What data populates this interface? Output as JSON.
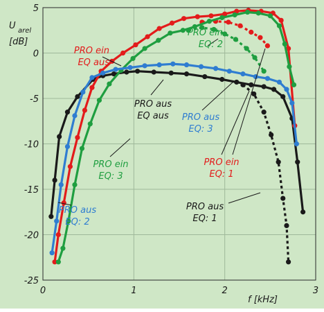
{
  "chart_data": {
    "type": "line",
    "background": "#cfe7c6",
    "title": "",
    "xlabel": "f [kHz]",
    "ylabel": "U",
    "ylabel_sub": "arel",
    "ylabel_unit": "[dB]",
    "xlim": [
      0,
      3
    ],
    "ylim": [
      -25,
      5
    ],
    "xticks": [
      0,
      1,
      2,
      3
    ],
    "xtick_labels": [
      "0",
      "1",
      "2",
      "3"
    ],
    "yticks": [
      5,
      0,
      -5,
      -10,
      -15,
      -20,
      -25
    ],
    "ytick_labels": [
      "5",
      "0",
      "-5",
      "-10",
      "-15",
      "-20",
      "-25"
    ],
    "grid": true,
    "series": [
      {
        "key": "black",
        "color": "#1a1a1a",
        "labels": [
          "PRO aus EQ: 1",
          "PRO aus EQ aus"
        ],
        "x": [
          0.09,
          0.13,
          0.18,
          0.27,
          0.38,
          0.55,
          0.66,
          0.78,
          0.92,
          1.04,
          1.22,
          1.41,
          1.58,
          1.78,
          1.97,
          2.13,
          2.29,
          2.43,
          2.54,
          2.64,
          2.74,
          2.8,
          2.86
        ],
        "y": [
          -18,
          -14,
          -9.2,
          -6.5,
          -4.8,
          -2.9,
          -2.5,
          -2.3,
          -2.1,
          -2.0,
          -2.1,
          -2.2,
          -2.3,
          -2.6,
          -2.9,
          -3.2,
          -3.5,
          -3.7,
          -4.0,
          -4.8,
          -7.2,
          -12,
          -17.5
        ],
        "dotted": {
          "x": [
            2.2,
            2.32,
            2.43,
            2.51,
            2.59,
            2.64,
            2.68,
            2.7
          ],
          "y": [
            -3.5,
            -4.5,
            -6.5,
            -9.0,
            -12,
            -16,
            -19,
            -23
          ]
        }
      },
      {
        "key": "red",
        "color": "#e31b1b",
        "labels": [
          "PRO ein EQ aus",
          "PRO ein EQ: 1"
        ],
        "x": [
          0.13,
          0.17,
          0.23,
          0.3,
          0.38,
          0.46,
          0.54,
          0.64,
          0.76,
          0.88,
          1.02,
          1.15,
          1.28,
          1.42,
          1.55,
          1.7,
          1.85,
          2.0,
          2.13,
          2.26,
          2.4,
          2.53,
          2.62,
          2.7,
          2.77
        ],
        "y": [
          -23,
          -20,
          -16.5,
          -12.5,
          -9.3,
          -6.3,
          -3.8,
          -2.0,
          -0.9,
          0.0,
          0.9,
          1.8,
          2.7,
          3.3,
          3.8,
          4.0,
          4.1,
          4.3,
          4.6,
          4.7,
          4.6,
          4.4,
          3.6,
          0.5,
          -8.0
        ],
        "dotted": {
          "x": [
            1.75,
            1.9,
            2.04,
            2.17,
            2.29,
            2.39,
            2.47
          ],
          "y": [
            3.4,
            3.5,
            3.4,
            3.0,
            2.3,
            1.7,
            0.8
          ]
        }
      },
      {
        "key": "green",
        "color": "#1f9e40",
        "labels": [
          "PRO ein EQ: 3",
          "PRO ein EQ: 2"
        ],
        "x": [
          0.17,
          0.22,
          0.28,
          0.35,
          0.43,
          0.52,
          0.62,
          0.73,
          0.86,
          0.99,
          1.12,
          1.27,
          1.4,
          1.54,
          1.67,
          1.83,
          1.97,
          2.11,
          2.25,
          2.37,
          2.5,
          2.6,
          2.66,
          2.71,
          2.76
        ],
        "y": [
          -23,
          -21.5,
          -18.5,
          -14.5,
          -10.5,
          -7.8,
          -5.2,
          -3.4,
          -1.9,
          -0.6,
          0.5,
          1.4,
          2.2,
          2.5,
          2.9,
          3.5,
          3.9,
          4.2,
          4.5,
          4.4,
          4.1,
          3.0,
          1.0,
          -1.5,
          -3.5
        ],
        "dotted": {
          "x": [
            1.6,
            1.75,
            1.88,
            2.0,
            2.12,
            2.24,
            2.33,
            2.43
          ],
          "y": [
            2.5,
            2.8,
            2.6,
            2.1,
            1.5,
            0.5,
            -0.5,
            -2.0
          ]
        }
      },
      {
        "key": "blue",
        "color": "#2f7dd1",
        "labels": [
          "PRO aus EQ: 3",
          "PRO aus EQ: 2"
        ],
        "x": [
          0.1,
          0.15,
          0.2,
          0.27,
          0.35,
          0.44,
          0.54,
          0.66,
          0.8,
          0.96,
          1.12,
          1.28,
          1.43,
          1.58,
          1.74,
          1.9,
          2.05,
          2.2,
          2.34,
          2.47,
          2.6,
          2.68,
          2.74,
          2.79
        ],
        "y": [
          -22,
          -18.5,
          -14.5,
          -10.3,
          -6.9,
          -4.3,
          -2.7,
          -2.2,
          -1.8,
          -1.6,
          -1.4,
          -1.3,
          -1.2,
          -1.3,
          -1.5,
          -1.7,
          -2.0,
          -2.3,
          -2.6,
          -2.8,
          -3.2,
          -4.0,
          -5.5,
          -10.0
        ]
      }
    ],
    "annotations": [
      {
        "lines": [
          "PRO ein",
          "EQ aus"
        ],
        "color": "#e31b1b"
      },
      {
        "lines": [
          "PRO ein",
          "EQ: 2"
        ],
        "color": "#1f9e40"
      },
      {
        "lines": [
          "PRO aus",
          "EQ aus"
        ],
        "color": "#1a1a1a"
      },
      {
        "lines": [
          "PRO aus",
          "EQ: 3"
        ],
        "color": "#2f7dd1"
      },
      {
        "lines": [
          "PRO ein",
          "EQ: 3"
        ],
        "color": "#1f9e40"
      },
      {
        "lines": [
          "PRO ein",
          "EQ: 1"
        ],
        "color": "#e31b1b"
      },
      {
        "lines": [
          "PRO aus",
          "EQ: 2"
        ],
        "color": "#2f7dd1"
      },
      {
        "lines": [
          "PRO aus",
          "EQ: 1"
        ],
        "color": "#1a1a1a"
      }
    ]
  }
}
